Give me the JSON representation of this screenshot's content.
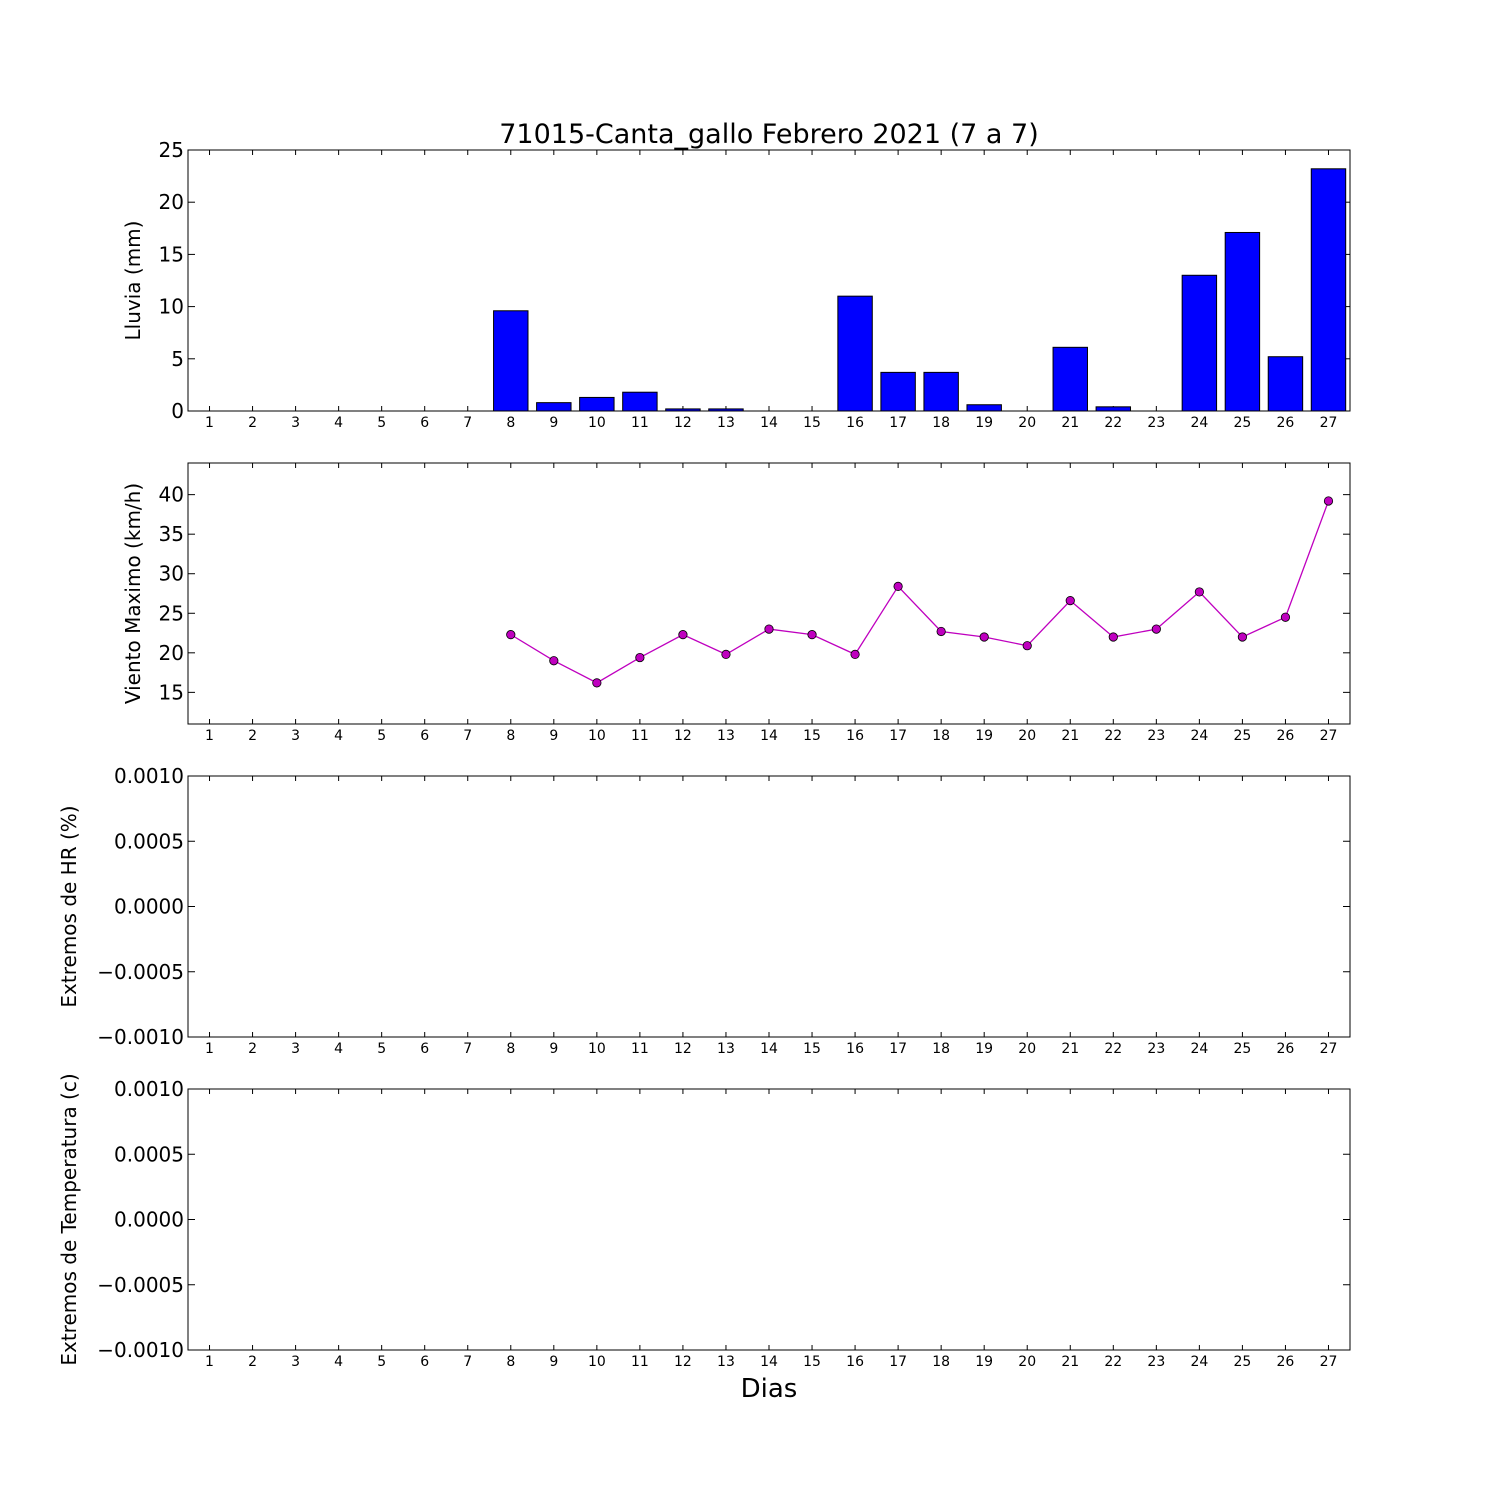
{
  "chart_data": {
    "title": "71015-Canta_gallo Febrero 2021  (7 a 7)",
    "xlabel": "Dias",
    "days": [
      1,
      2,
      3,
      4,
      5,
      6,
      7,
      8,
      9,
      10,
      11,
      12,
      13,
      14,
      15,
      16,
      17,
      18,
      19,
      20,
      21,
      22,
      23,
      24,
      25,
      26,
      27
    ],
    "panels": [
      {
        "type": "bar",
        "ylabel": "Lluvia (mm)",
        "ylim": [
          0,
          25
        ],
        "yticks": [
          0,
          5,
          10,
          15,
          20,
          25
        ],
        "ytick_labels": [
          "0",
          "5",
          "10",
          "15",
          "20",
          "25"
        ],
        "color": "#0000ff",
        "x": [
          8,
          9,
          10,
          11,
          12,
          13,
          16,
          17,
          18,
          19,
          21,
          22,
          24,
          25,
          26,
          27
        ],
        "values": [
          9.6,
          0.8,
          1.3,
          1.8,
          0.2,
          0.2,
          11.0,
          3.7,
          3.7,
          0.6,
          6.1,
          0.4,
          13.0,
          17.1,
          5.2,
          23.2
        ]
      },
      {
        "type": "line",
        "ylabel": "Viento Maximo (km/h)",
        "ylim": [
          11,
          44
        ],
        "yticks": [
          15,
          20,
          25,
          30,
          35,
          40
        ],
        "ytick_labels": [
          "15",
          "20",
          "25",
          "30",
          "35",
          "40"
        ],
        "color": "#bf00bf",
        "x": [
          8,
          9,
          10,
          11,
          12,
          13,
          14,
          15,
          16,
          17,
          18,
          19,
          20,
          21,
          22,
          23,
          24,
          25,
          26,
          27
        ],
        "values": [
          22.3,
          19.0,
          16.2,
          19.4,
          22.3,
          19.8,
          23.0,
          22.3,
          19.8,
          28.4,
          22.7,
          22.0,
          20.9,
          26.6,
          22.0,
          23.0,
          27.7,
          22.0,
          24.5,
          39.2
        ]
      },
      {
        "type": "line",
        "ylabel": "Extremos de HR (%)",
        "ylim": [
          -0.001,
          0.001
        ],
        "yticks": [
          -0.001,
          -0.0005,
          0,
          0.0005,
          0.001
        ],
        "ytick_labels": [
          "−0.0010",
          "−0.0005",
          "0.0000",
          "0.0005",
          "0.0010"
        ],
        "x": [],
        "values": []
      },
      {
        "type": "line",
        "ylabel": "Extremos de Temperatura (c)",
        "ylim": [
          -0.001,
          0.001
        ],
        "yticks": [
          -0.001,
          -0.0005,
          0,
          0.0005,
          0.001
        ],
        "ytick_labels": [
          "−0.0010",
          "−0.0005",
          "0.0000",
          "0.0005",
          "0.0010"
        ],
        "x": [],
        "values": []
      }
    ]
  }
}
